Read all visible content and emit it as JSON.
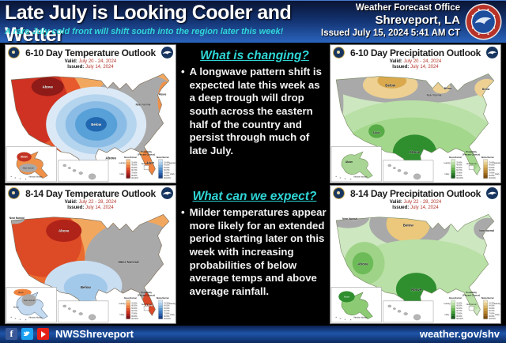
{
  "header": {
    "title": "Late July is Looking Cooler and Wetter",
    "subtitle": "A rare July cold front will shift south into the region later this week!",
    "office_line1": "Weather Forecast Office",
    "office_line2": "Shreveport, LA",
    "issued": "Issued July 15, 2024 5:41 AM CT"
  },
  "qa": {
    "q1": {
      "heading": "What is changing?",
      "bullet_char": "•",
      "bullet": "A longwave pattern shift is expected late this week as a deep trough will drop south across the eastern half of the country and persist through much of late July."
    },
    "q2": {
      "heading": "What can we expect?",
      "bullet_char": "•",
      "bullet": "Milder temperatures appear more likely for an extended period starting later on this week with increasing probabilities of below average temps and above average rainfall."
    }
  },
  "map_common": {
    "valid_label": "Valid:",
    "issued_label": "Issued:"
  },
  "panels": {
    "t610": {
      "title": "6-10 Day Temperature Outlook",
      "valid": "July 20 - 24, 2024",
      "issued": "July 14, 2024",
      "labels": {
        "above_nw": "Above",
        "near_ne": "Near Normal",
        "below_c": "Below",
        "above_s": "Above",
        "above_fl": "Above",
        "above_ne": "Above",
        "ak_above": "Above",
        "ak_near": "Near Normal"
      }
    },
    "p610": {
      "title": "6-10 Day Precipitation Outlook",
      "valid": "July 20 - 24, 2024",
      "issued": "July 14, 2024",
      "labels": {
        "below_np": "Below",
        "near_c": "Near Normal",
        "below_gl": "Below",
        "below_ne": "Below",
        "above_w": "Above",
        "above_tx": "Above",
        "ak_above": "Above"
      }
    },
    "t814": {
      "title": "8-14 Day Temperature Outlook",
      "valid": "July 22 - 28, 2024",
      "issued": "July 14, 2024",
      "labels": {
        "near_nw": "Near Normal",
        "above_n": "Above",
        "near_e": "Near Normal",
        "below_tx": "Below",
        "above_fl": "Above",
        "ak_above": "Above",
        "ak_near": "Near Normal",
        "ak_below": "Below"
      }
    },
    "p814": {
      "title": "8-14 Day Precipitation Outlook",
      "valid": "July 22 - 28, 2024",
      "issued": "July 14, 2024",
      "labels": {
        "near_nw": "Near Normal",
        "below_nc": "Below",
        "near_ne": "Near Normal",
        "above_w": "Above",
        "above_tx": "Above",
        "ak_above": "Above"
      }
    }
  },
  "legend": {
    "title1": "Probability",
    "title2": "(Percent Chance)",
    "above_col": "Above Normal",
    "below_col": "Below Normal",
    "near": "Near Normal",
    "leaning": "Leaning",
    "likely": "Likely",
    "rows": [
      "33-40%",
      "40-50%",
      "50-60%",
      "60-70%",
      "70-80%",
      "80-90%",
      "90-100%"
    ]
  },
  "insets": {
    "aleutian": "Aleutian Islands"
  },
  "footer": {
    "handle": "NWSShreveport",
    "url": "weather.gov/shv"
  },
  "colors": {
    "header_blue": "#12316e",
    "accent_cyan": "#2fd6d6",
    "temp_above_red": "#cf3222",
    "temp_below_blue": "#2268b0",
    "precip_above_green": "#2f8f2f",
    "precip_below_tan": "#daa94e",
    "near_normal_gray": "#a9a9a9",
    "footer_blue": "#1e54a8",
    "facebook": "#3b5998",
    "twitter": "#1da1f2",
    "youtube": "#e62117"
  }
}
